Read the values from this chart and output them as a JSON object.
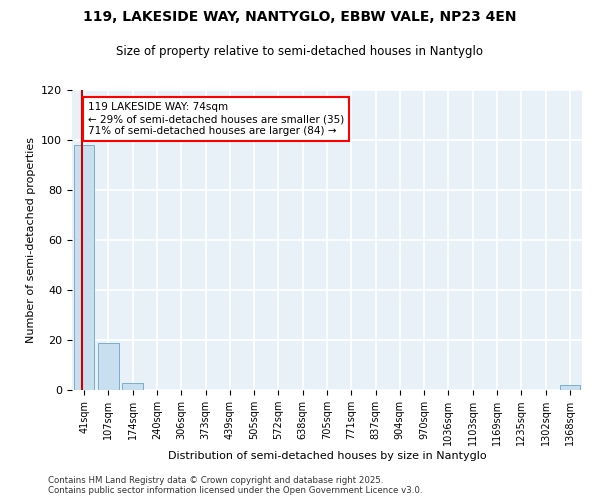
{
  "title_line1": "119, LAKESIDE WAY, NANTYGLO, EBBW VALE, NP23 4EN",
  "title_line2": "Size of property relative to semi-detached houses in Nantyglo",
  "xlabel": "Distribution of semi-detached houses by size in Nantyglo",
  "ylabel": "Number of semi-detached properties",
  "categories": [
    "41sqm",
    "107sqm",
    "174sqm",
    "240sqm",
    "306sqm",
    "373sqm",
    "439sqm",
    "505sqm",
    "572sqm",
    "638sqm",
    "705sqm",
    "771sqm",
    "837sqm",
    "904sqm",
    "970sqm",
    "1036sqm",
    "1103sqm",
    "1169sqm",
    "1235sqm",
    "1302sqm",
    "1368sqm"
  ],
  "values": [
    98,
    19,
    3,
    0,
    0,
    0,
    0,
    0,
    0,
    0,
    0,
    0,
    0,
    0,
    0,
    0,
    0,
    0,
    0,
    0,
    2
  ],
  "bar_color": "#c8dff0",
  "bar_edge_color": "#7aadcc",
  "red_line_x": -0.08,
  "annotation_title": "119 LAKESIDE WAY: 74sqm",
  "annotation_line2": "← 29% of semi-detached houses are smaller (35)",
  "annotation_line3": "71% of semi-detached houses are larger (84) →",
  "annotation_box_color": "white",
  "annotation_box_edge_color": "red",
  "red_line_color": "#cc0000",
  "ylim": [
    0,
    120
  ],
  "yticks": [
    0,
    20,
    40,
    60,
    80,
    100,
    120
  ],
  "background_color": "#e8f0f8",
  "grid_color": "white",
  "footer_line1": "Contains HM Land Registry data © Crown copyright and database right 2025.",
  "footer_line2": "Contains public sector information licensed under the Open Government Licence v3.0."
}
